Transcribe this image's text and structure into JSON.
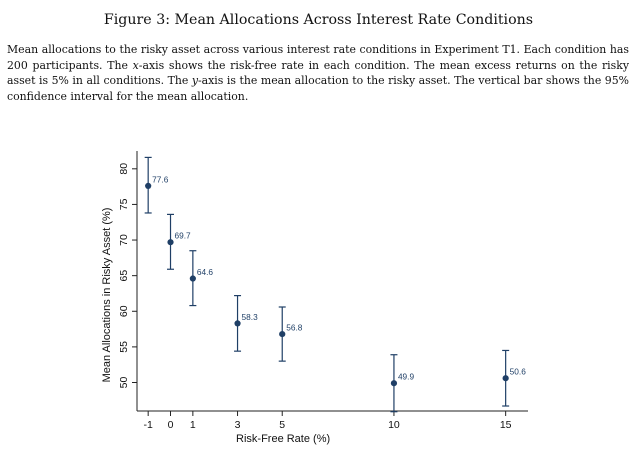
{
  "figure": {
    "title": "Figure 3: Mean Allocations Across Interest Rate Conditions",
    "caption_parts": [
      "Mean allocations to the risky asset across various interest rate conditions in Experiment T1. Each condition has 200 participants. The ",
      "x",
      "-axis shows the risk-free rate in each condition. The mean excess returns on the risky asset is 5% in all conditions. The ",
      "y",
      "-axis is the mean allocation to the risky asset. The vertical bar shows the 95% confidence interval for the mean allocation."
    ]
  },
  "chart_data": {
    "type": "scatter",
    "xlabel": "Risk-Free Rate (%)",
    "ylabel": "Mean Allocations in Risky Asset (%)",
    "xlim": [
      -1.5,
      16
    ],
    "ylim": [
      46,
      82.5
    ],
    "x_ticks": [
      -1,
      0,
      1,
      3,
      5,
      10,
      15
    ],
    "y_ticks": [
      50,
      55,
      60,
      65,
      70,
      75,
      80
    ],
    "points": [
      {
        "x": -1,
        "y": 77.6,
        "lo": 73.8,
        "hi": 81.6,
        "label": "77.6"
      },
      {
        "x": 0,
        "y": 69.7,
        "lo": 65.9,
        "hi": 73.6,
        "label": "69.7"
      },
      {
        "x": 1,
        "y": 64.6,
        "lo": 60.8,
        "hi": 68.5,
        "label": "64.6"
      },
      {
        "x": 3,
        "y": 58.3,
        "lo": 54.4,
        "hi": 62.2,
        "label": "58.3"
      },
      {
        "x": 5,
        "y": 56.8,
        "lo": 53.0,
        "hi": 60.6,
        "label": "56.8"
      },
      {
        "x": 10,
        "y": 49.9,
        "lo": 45.9,
        "hi": 53.9,
        "label": "49.9"
      },
      {
        "x": 15,
        "y": 50.6,
        "lo": 46.7,
        "hi": 54.5,
        "label": "50.6"
      }
    ],
    "marker_color": "#1f3f66",
    "grid": false,
    "legend": "none"
  }
}
